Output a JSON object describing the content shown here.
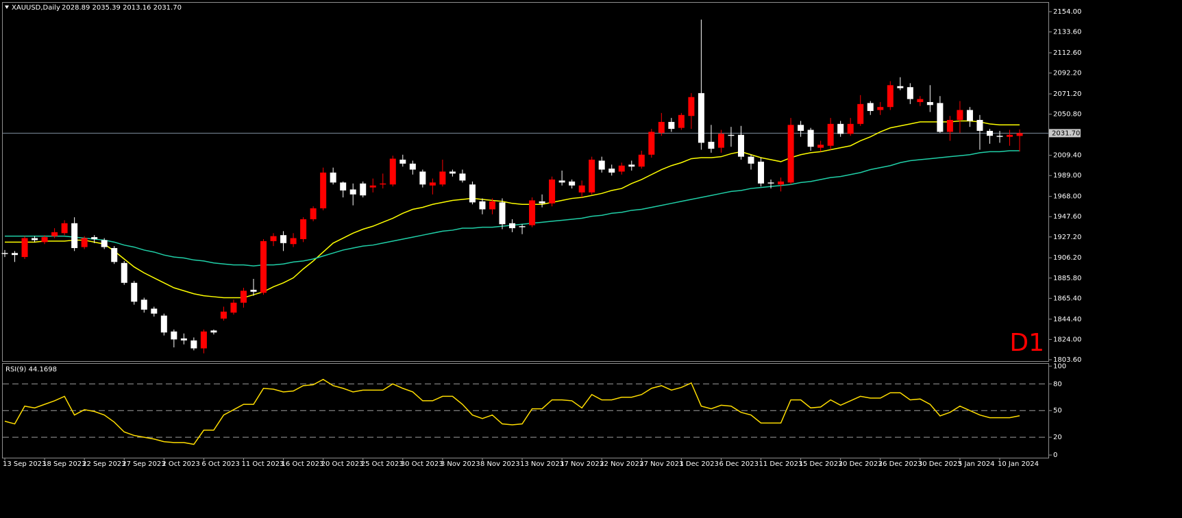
{
  "chart_data": [
    {
      "type": "candlestick",
      "title": "XAUUSD,Daily",
      "subtitle": "2028.89 2035.39 2013.16 2031.70",
      "timeframe_label": "D1",
      "up_color": "#ff0000",
      "down_color": "#ffffff",
      "categories": [
        "13 Sep 2023",
        null,
        null,
        null,
        "18 Sep 2023",
        null,
        null,
        null,
        "22 Sep 2023",
        null,
        null,
        null,
        "27 Sep 2023",
        null,
        null,
        null,
        "2 Oct 2023",
        null,
        null,
        null,
        "6 Oct 2023",
        null,
        null,
        null,
        "11 Oct 2023",
        null,
        null,
        null,
        "16 Oct 2023",
        null,
        null,
        null,
        "20 Oct 2023",
        null,
        null,
        null,
        "25 Oct 2023",
        null,
        null,
        null,
        "30 Oct 2023",
        null,
        null,
        null,
        "3 Nov 2023",
        null,
        null,
        null,
        "8 Nov 2023",
        null,
        null,
        null,
        "13 Nov 2023",
        null,
        null,
        null,
        "17 Nov 2023",
        null,
        null,
        null,
        "22 Nov 2023",
        null,
        null,
        null,
        "27 Nov 2023",
        null,
        null,
        null,
        "1 Dec 2023",
        null,
        null,
        null,
        "6 Dec 2023",
        null,
        null,
        null,
        "11 Dec 2023",
        null,
        null,
        null,
        "15 Dec 2023",
        null,
        null,
        null,
        "20 Dec 2023",
        null,
        null,
        null,
        "26 Dec 2023",
        null,
        null,
        null,
        "30 Dec 2023",
        null,
        null,
        null,
        "5 Jan 2024",
        null,
        null,
        null,
        "10 Jan 2024",
        null,
        null
      ],
      "open": [
        1911,
        1911,
        1907,
        1926,
        1922,
        1928,
        1931,
        1941,
        1917,
        1927,
        1924,
        1916,
        1901,
        1881,
        1864,
        1855,
        1848,
        1832,
        1825,
        1823,
        1815,
        1833,
        1845,
        1851,
        1861,
        1874,
        1871,
        1923,
        1929,
        1920,
        1925,
        1945,
        1956,
        1992,
        1982,
        1975,
        1981,
        1977,
        1980,
        1980,
        2005,
        2001,
        1993,
        1979,
        1980,
        1993,
        1991,
        1980,
        1963,
        1955,
        1962,
        1941,
        1938,
        1939,
        1963,
        1961,
        1984,
        1983,
        1972,
        1972,
        2004,
        1996,
        1993,
        2000,
        1998,
        2010,
        2032,
        2043,
        2037,
        2049,
        2072,
        2023,
        2017,
        2030,
        2030,
        2008,
        2003,
        1982,
        1980,
        1982,
        2040,
        2035,
        2017,
        2019,
        2041,
        2031,
        2041,
        2062,
        2055,
        2058,
        2079,
        2078,
        2063,
        2063,
        2062,
        2033,
        2045,
        2055,
        2045,
        2034,
        2029,
        2028,
        2028.89
      ],
      "high": [
        1914,
        1913,
        1928,
        1928,
        1929,
        1936,
        1944,
        1947,
        1928,
        1929,
        1926,
        1918,
        1903,
        1883,
        1866,
        1857,
        1850,
        1834,
        1830,
        1826,
        1834,
        1834,
        1857,
        1864,
        1876,
        1885,
        1925,
        1931,
        1933,
        1931,
        1947,
        1958,
        1997,
        1997,
        1983,
        1981,
        1983,
        1986,
        1991,
        2009,
        2010,
        2004,
        1995,
        1986,
        2005,
        1995,
        1995,
        1983,
        1966,
        1966,
        1966,
        1945,
        1940,
        1967,
        1970,
        1988,
        1994,
        1985,
        1984,
        2008,
        2008,
        2000,
        2002,
        2004,
        2014,
        2036,
        2052,
        2047,
        2052,
        2072,
        2146,
        2040,
        2035,
        2038,
        2039,
        2010,
        2007,
        1985,
        1987,
        2047,
        2044,
        2037,
        2024,
        2047,
        2044,
        2047,
        2070,
        2064,
        2063,
        2084,
        2088,
        2082,
        2069,
        2080,
        2069,
        2049,
        2064,
        2058,
        2050,
        2036,
        2034,
        2035,
        2035.39
      ],
      "low": [
        1907,
        1902,
        1905,
        1922,
        1920,
        1926,
        1929,
        1913,
        1915,
        1921,
        1915,
        1900,
        1879,
        1859,
        1851,
        1847,
        1828,
        1816,
        1819,
        1813,
        1810,
        1829,
        1843,
        1849,
        1856,
        1868,
        1869,
        1918,
        1913,
        1917,
        1922,
        1943,
        1954,
        1980,
        1967,
        1959,
        1967,
        1972,
        1976,
        1978,
        1998,
        1990,
        1977,
        1970,
        1978,
        1988,
        1982,
        1960,
        1950,
        1950,
        1935,
        1932,
        1930,
        1937,
        1957,
        1958,
        1979,
        1976,
        1967,
        1970,
        1992,
        1989,
        1990,
        1994,
        1996,
        2007,
        2029,
        2033,
        2035,
        2036,
        2015,
        2012,
        2012,
        2018,
        2005,
        1995,
        1978,
        1976,
        1973,
        1980,
        2028,
        2014,
        2013,
        2015,
        2028,
        2029,
        2039,
        2050,
        2050,
        2055,
        2075,
        2061,
        2059,
        2053,
        2032,
        2024,
        2032,
        2038,
        2015,
        2021,
        2022,
        2019,
        2013.16
      ],
      "close": [
        1910,
        1909,
        1926,
        1924,
        1927,
        1932,
        1941,
        1916,
        1926,
        1925,
        1917,
        1902,
        1881,
        1862,
        1854,
        1850,
        1831,
        1824,
        1823,
        1815,
        1832,
        1831,
        1852,
        1861,
        1873,
        1872,
        1923,
        1928,
        1921,
        1926,
        1945,
        1956,
        1992,
        1982,
        1974,
        1970,
        1969,
        1979,
        1981,
        2006,
        2001,
        1995,
        1980,
        1982,
        1993,
        1991,
        1984,
        1962,
        1955,
        1963,
        1940,
        1936,
        1937,
        1964,
        1961,
        1985,
        1982,
        1979,
        1979,
        2005,
        1995,
        1992,
        1999,
        1998,
        2010,
        2033,
        2043,
        2036,
        2050,
        2068,
        2022,
        2016,
        2031,
        2029,
        2008,
        2001,
        1981,
        1981,
        1983,
        2040,
        2034,
        2018,
        2020,
        2041,
        2031,
        2041,
        2061,
        2054,
        2058,
        2080,
        2077,
        2066,
        2066,
        2060,
        2033,
        2045,
        2055,
        2044,
        2034,
        2029,
        2028,
        2030,
        2031.7
      ],
      "series": [
        {
          "color": "#ffff00",
          "values": [
            1922,
            1922,
            1922,
            1922,
            1923,
            1923,
            1923,
            1924,
            1924,
            1922,
            1920,
            1913,
            1905,
            1897,
            1891,
            1886,
            1881,
            1876,
            1873,
            1870,
            1868,
            1867,
            1866,
            1866,
            1866,
            1869,
            1872,
            1877,
            1881,
            1886,
            1895,
            1903,
            1912,
            1921,
            1926,
            1931,
            1935,
            1938,
            1942,
            1946,
            1951,
            1955,
            1957,
            1960,
            1962,
            1964,
            1965,
            1966,
            1965,
            1964,
            1963,
            1961,
            1960,
            1960,
            1960,
            1962,
            1964,
            1966,
            1967,
            1969,
            1971,
            1974,
            1976,
            1981,
            1985,
            1990,
            1995,
            1999,
            2002,
            2006,
            2007,
            2007,
            2008,
            2011,
            2013,
            2010,
            2007,
            2005,
            2003,
            2007,
            2010,
            2012,
            2013,
            2015,
            2017,
            2019,
            2024,
            2028,
            2033,
            2037,
            2039,
            2041,
            2043,
            2043,
            2043,
            2043,
            2044,
            2044,
            2043,
            2041,
            2040,
            2040,
            2040
          ]
        },
        {
          "color": "#20d0a8",
          "values": [
            1928,
            1928,
            1928,
            1928,
            1928,
            1928,
            1928,
            1927,
            1926,
            1925,
            1924,
            1922,
            1919,
            1917,
            1914,
            1912,
            1909,
            1907,
            1906,
            1904,
            1903,
            1901,
            1900,
            1899,
            1899,
            1898,
            1899,
            1899,
            1900,
            1902,
            1903,
            1905,
            1908,
            1911,
            1914,
            1916,
            1918,
            1919,
            1921,
            1923,
            1925,
            1927,
            1929,
            1931,
            1933,
            1934,
            1936,
            1936,
            1937,
            1937,
            1938,
            1939,
            1940,
            1941,
            1942,
            1943,
            1944,
            1945,
            1946,
            1948,
            1949,
            1951,
            1952,
            1954,
            1955,
            1957,
            1959,
            1961,
            1963,
            1965,
            1967,
            1969,
            1971,
            1973,
            1974,
            1976,
            1977,
            1978,
            1979,
            1980,
            1982,
            1983,
            1985,
            1987,
            1988,
            1990,
            1992,
            1995,
            1997,
            1999,
            2002,
            2004,
            2005,
            2006,
            2007,
            2008,
            2009,
            2010,
            2012,
            2013,
            2013,
            2014,
            2014
          ]
        }
      ],
      "last_price": {
        "value": 2031.7,
        "label": "2031.70"
      },
      "ylim": [
        1802.2,
        2162.3
      ],
      "yticks": [
        {
          "value": 2154,
          "label": "2154.00"
        },
        {
          "value": 2133.6,
          "label": "2133.60"
        },
        {
          "value": 2112.6,
          "label": "2112.60"
        },
        {
          "value": 2092.2,
          "label": "2092.20"
        },
        {
          "value": 2071.2,
          "label": "2071.20"
        },
        {
          "value": 2050.8,
          "label": "2050.80"
        },
        {
          "value": 2009.4,
          "label": "2009.40"
        },
        {
          "value": 1989,
          "label": "1989.00"
        },
        {
          "value": 1968,
          "label": "1968.00"
        },
        {
          "value": 1947.6,
          "label": "1947.60"
        },
        {
          "value": 1927.2,
          "label": "1927.20"
        },
        {
          "value": 1906.2,
          "label": "1906.20"
        },
        {
          "value": 1885.8,
          "label": "1885.80"
        },
        {
          "value": 1865.4,
          "label": "1865.40"
        },
        {
          "value": 1844.4,
          "label": "1844.40"
        },
        {
          "value": 1824,
          "label": "1824.00"
        },
        {
          "value": 1803.6,
          "label": "1803.60"
        }
      ]
    },
    {
      "type": "line",
      "title": "RSI(9) 44.1698",
      "color": "#ffdd00",
      "values": [
        38,
        35,
        55,
        53,
        57,
        61,
        66,
        45,
        51,
        49,
        45,
        37,
        26,
        22,
        20,
        18,
        15,
        14,
        14,
        12,
        28,
        28,
        45,
        51,
        57,
        57,
        75,
        74,
        71,
        72,
        78,
        79,
        85,
        78,
        75,
        71,
        73,
        73,
        73,
        80,
        75,
        71,
        61,
        61,
        66,
        66,
        57,
        45,
        41,
        45,
        35,
        34,
        35,
        52,
        52,
        62,
        62,
        61,
        53,
        68,
        62,
        62,
        65,
        65,
        68,
        75,
        78,
        73,
        76,
        81,
        55,
        52,
        56,
        55,
        48,
        45,
        36,
        36,
        36,
        62,
        62,
        53,
        54,
        62,
        56,
        61,
        66,
        64,
        64,
        70,
        70,
        62,
        63,
        57,
        44,
        48,
        55,
        50,
        45,
        42,
        42,
        42,
        44.1698
      ],
      "levels": [
        20,
        50,
        80
      ],
      "ylim": [
        -3,
        101
      ],
      "yticks": [
        0,
        20,
        50,
        80,
        100
      ]
    }
  ]
}
